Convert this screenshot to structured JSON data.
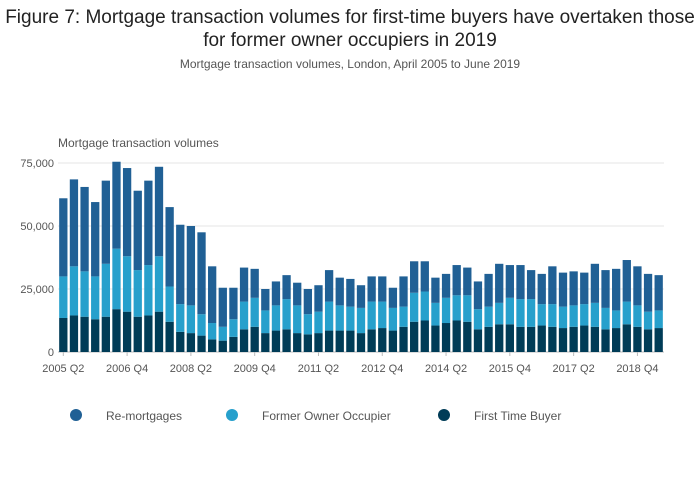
{
  "colors": {
    "remortgages": "#206095",
    "former_owner_occupier": "#27a0cc",
    "first_time_buyer": "#003c57",
    "grid": "#e6e6e6",
    "axis": "#bbbbbb"
  },
  "chart_data": {
    "type": "bar",
    "stacked": true,
    "title": "Figure 7: Mortgage transaction volumes for first-time buyers have overtaken those for former owner occupiers in 2019",
    "subtitle": "Mortgage transaction volumes, London, April 2005 to June 2019",
    "ylabel": "Mortgage transaction volumes",
    "ylim": [
      0,
      75000
    ],
    "yticks": [
      0,
      25000,
      50000,
      75000
    ],
    "ytick_labels": [
      "0",
      "25,000",
      "50,000",
      "75,000"
    ],
    "grid": true,
    "legend_position": "bottom",
    "start_quarter": "2005 Q2",
    "xtick_labels": [
      "2005 Q2",
      "2006 Q4",
      "2008 Q2",
      "2009 Q4",
      "2011 Q2",
      "2012 Q4",
      "2014 Q2",
      "2015 Q4",
      "2017 Q2",
      "2018 Q4"
    ],
    "xtick_every": 6,
    "series": [
      {
        "name": "First Time Buyer",
        "values": [
          13500,
          14500,
          14000,
          13000,
          14000,
          17000,
          16000,
          14000,
          14500,
          16000,
          12000,
          8000,
          7500,
          6500,
          5000,
          4500,
          6000,
          9000,
          10000,
          7500,
          8500,
          9000,
          7500,
          7000,
          7500,
          8500,
          8500,
          8500,
          7500,
          9000,
          9500,
          8500,
          10000,
          12000,
          12500,
          10500,
          11500,
          12500,
          12000,
          9000,
          10000,
          11000,
          11000,
          10000,
          10000,
          10500,
          10000,
          9500,
          10000,
          10500,
          10000,
          9000,
          9500,
          11000,
          10000,
          9000,
          9500
        ]
      },
      {
        "name": "Former Owner Occupier",
        "values": [
          16500,
          19500,
          18000,
          17000,
          21000,
          24000,
          22000,
          18500,
          20000,
          22000,
          14000,
          11000,
          11000,
          8500,
          6500,
          5500,
          7000,
          11000,
          11500,
          9000,
          10000,
          12000,
          11000,
          8000,
          8500,
          11500,
          10000,
          9500,
          10000,
          11000,
          10500,
          9000,
          8000,
          11500,
          11500,
          9000,
          10000,
          10000,
          10500,
          8000,
          8000,
          8500,
          10500,
          11000,
          11000,
          8500,
          9000,
          8500,
          8500,
          8500,
          9500,
          8500,
          7000,
          9000,
          8500,
          7000,
          7000
        ]
      },
      {
        "name": "Re-mortgages",
        "values": [
          31000,
          34500,
          33500,
          29500,
          33000,
          34500,
          35000,
          31500,
          33500,
          35500,
          31500,
          31500,
          31500,
          32500,
          22500,
          15500,
          12500,
          13500,
          11500,
          8500,
          9500,
          9500,
          9000,
          10000,
          10500,
          12500,
          11000,
          11000,
          9000,
          10000,
          10000,
          8000,
          12000,
          12500,
          12000,
          10000,
          9500,
          12000,
          11000,
          11000,
          13000,
          15500,
          13000,
          13500,
          11500,
          12000,
          15000,
          13500,
          13500,
          12500,
          15500,
          15000,
          16500,
          16500,
          15500,
          15000,
          14000
        ]
      }
    ]
  }
}
